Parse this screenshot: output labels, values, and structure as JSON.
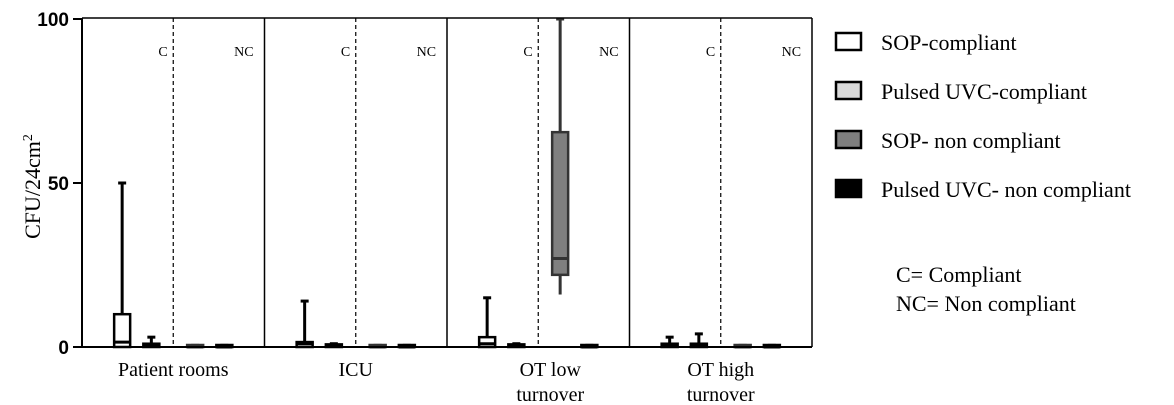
{
  "chart_data": {
    "type": "box",
    "ylabel": "CFU/24cm",
    "ylabel_superscript": "2",
    "ylim": [
      0,
      100
    ],
    "yticks": [
      0,
      50,
      100
    ],
    "categories": [
      {
        "label_lines": [
          "Patient rooms"
        ]
      },
      {
        "label_lines": [
          "ICU"
        ]
      },
      {
        "label_lines": [
          "OT low",
          "turnover"
        ]
      },
      {
        "label_lines": [
          "OT high",
          "turnover"
        ]
      }
    ],
    "subgroups": [
      "C",
      "NC"
    ],
    "series": [
      {
        "name": "SOP-compliant",
        "fill": "#ffffff"
      },
      {
        "name": "Pulsed UVC-compliant",
        "fill": "#d9d9d9"
      },
      {
        "name": "SOP- non compliant",
        "fill": "#7f7f7f"
      },
      {
        "name": "Pulsed UVC- non compliant",
        "fill": "#000000"
      }
    ],
    "boxes": [
      {
        "category": 0,
        "series": 0,
        "min": 0,
        "q1": 0,
        "median": 1.5,
        "q3": 10,
        "max": 50
      },
      {
        "category": 0,
        "series": 1,
        "min": 0,
        "q1": 0,
        "median": 0.5,
        "q3": 1,
        "max": 3
      },
      {
        "category": 0,
        "series": 2,
        "min": 0,
        "q1": 0,
        "median": 0,
        "q3": 0.5,
        "max": 0.5
      },
      {
        "category": 0,
        "series": 3,
        "min": 0,
        "q1": 0,
        "median": 0,
        "q3": 0.5,
        "max": 0.5
      },
      {
        "category": 1,
        "series": 0,
        "min": 0,
        "q1": 0,
        "median": 1,
        "q3": 1.5,
        "max": 14
      },
      {
        "category": 1,
        "series": 1,
        "min": 0,
        "q1": 0,
        "median": 0.5,
        "q3": 0.8,
        "max": 1
      },
      {
        "category": 1,
        "series": 2,
        "min": 0,
        "q1": 0,
        "median": 0,
        "q3": 0.5,
        "max": 0.5
      },
      {
        "category": 1,
        "series": 3,
        "min": 0,
        "q1": 0,
        "median": 0,
        "q3": 0.5,
        "max": 0.5
      },
      {
        "category": 2,
        "series": 0,
        "min": 0,
        "q1": 0,
        "median": 1,
        "q3": 3,
        "max": 15
      },
      {
        "category": 2,
        "series": 1,
        "min": 0,
        "q1": 0,
        "median": 0.5,
        "q3": 0.8,
        "max": 1
      },
      {
        "category": 2,
        "series": 2,
        "min": 16,
        "q1": 22,
        "median": 27,
        "q3": 65.5,
        "max": 100
      },
      {
        "category": 2,
        "series": 3,
        "min": 0,
        "q1": 0,
        "median": 0,
        "q3": 0.5,
        "max": 0.5
      },
      {
        "category": 3,
        "series": 0,
        "min": 0,
        "q1": 0,
        "median": 0.5,
        "q3": 1,
        "max": 3
      },
      {
        "category": 3,
        "series": 1,
        "min": 0,
        "q1": 0,
        "median": 0.5,
        "q3": 1,
        "max": 4
      },
      {
        "category": 3,
        "series": 2,
        "min": 0,
        "q1": 0,
        "median": 0,
        "q3": 0.5,
        "max": 0.5
      },
      {
        "category": 3,
        "series": 3,
        "min": 0,
        "q1": 0,
        "median": 0,
        "q3": 0.5,
        "max": 0.5
      }
    ],
    "notes": [
      "C= Compliant",
      "NC= Non compliant"
    ],
    "grid": false,
    "legend_position": "right"
  }
}
